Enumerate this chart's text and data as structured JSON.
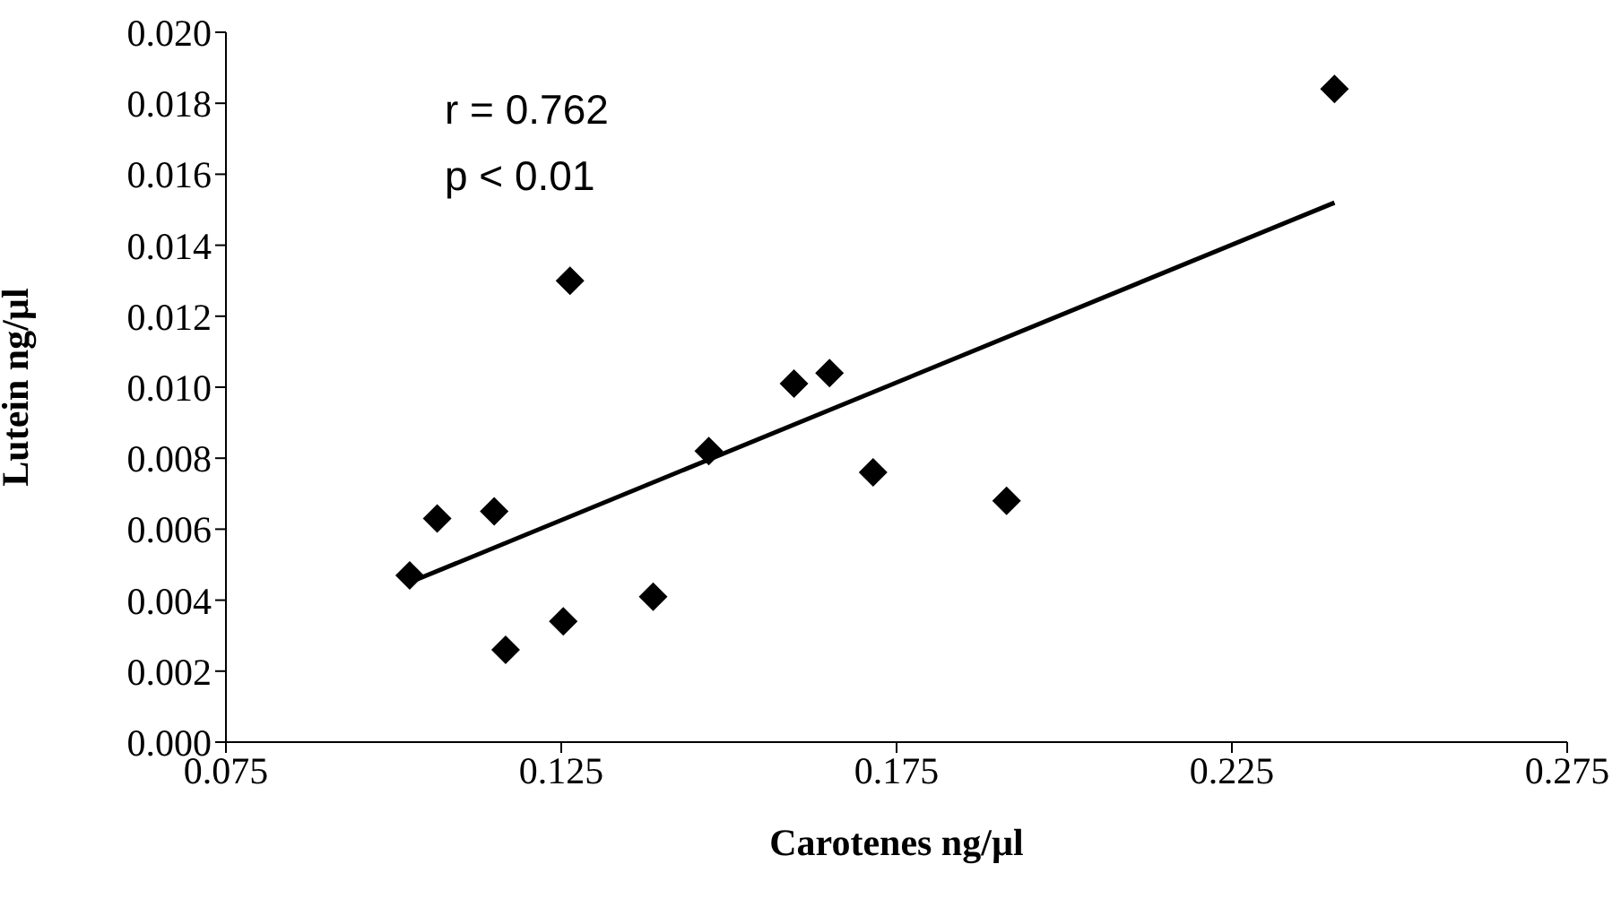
{
  "chart_data": {
    "type": "scatter",
    "xlabel": "Carotenes ng/µl",
    "ylabel": "Lutein ng/µl",
    "annotations": [
      "r = 0.762",
      "p < 0.01"
    ],
    "xlim": [
      0.075,
      0.275
    ],
    "xticks": [
      0.075,
      0.125,
      0.175,
      0.225,
      0.275
    ],
    "ylim": [
      0,
      0.02
    ],
    "yticks": [
      {
        "value": 0,
        "label": "0.000"
      },
      0.002,
      0.004,
      0.006,
      0.008,
      {
        "value": 0.01,
        "label": "0.010"
      },
      0.012,
      0.014,
      0.016,
      0.018,
      {
        "value": 0.02,
        "label": "0.020"
      }
    ],
    "grid": false,
    "legend": false,
    "marker": "diamond",
    "series": [
      {
        "color": "#000000",
        "x": [
          0.1024,
          0.1065,
          0.115,
          0.1167,
          0.1253,
          0.1263,
          0.1387,
          0.147,
          0.1597,
          0.165,
          0.1715,
          0.1914,
          0.2403
        ],
        "values": [
          0.0047,
          0.0063,
          0.0065,
          0.0026,
          0.0034,
          0.013,
          0.0041,
          0.0082,
          0.0101,
          0.0104,
          0.0076,
          0.0068,
          0.0184
        ]
      },
      {
        "type": "line",
        "color": "#000000",
        "marker": "none",
        "line_style": "solid",
        "x": [
          0.1024,
          0.2403
        ],
        "values": [
          0.0045,
          0.0152
        ]
      }
    ]
  }
}
